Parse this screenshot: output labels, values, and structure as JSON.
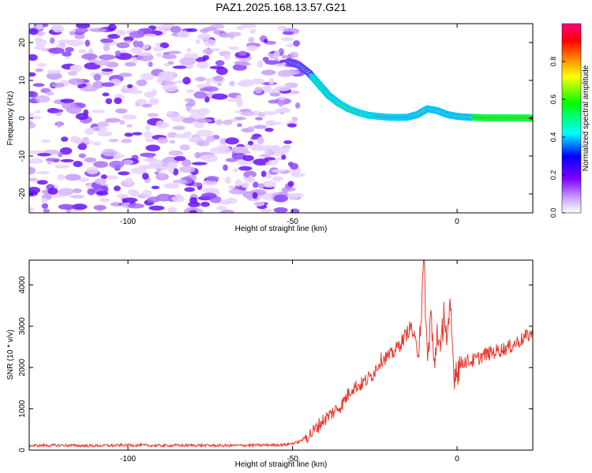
{
  "title": "PAZ1.2025.168.13.57.G21",
  "chart_data": [
    {
      "type": "heatmap",
      "xlabel": "Height of straight line (km)",
      "ylabel": "Frequency (Hz)",
      "xlim": [
        -130,
        23
      ],
      "ylim": [
        -25,
        25
      ],
      "xticks": [
        -100,
        -50,
        0
      ],
      "yticks": [
        -20,
        -10,
        0,
        10,
        20
      ],
      "colorbar": {
        "label": "Normalized spectral amplitude",
        "range": [
          0,
          1
        ],
        "ticks": [
          0.0,
          0.2,
          0.4,
          0.6,
          0.8
        ],
        "colors": [
          "#ffffff",
          "#9f3fff",
          "#0000ff",
          "#00ffff",
          "#00ff00",
          "#ffff00",
          "#ff8000",
          "#ff0000",
          "#ff0080"
        ]
      },
      "ridge": {
        "x": [
          -51,
          -48,
          -45,
          -42,
          -39,
          -36,
          -33,
          -30,
          -27,
          -24,
          -21,
          -18,
          -15,
          -12,
          -9,
          -6,
          -3,
          0,
          3,
          6,
          9,
          12,
          15,
          18,
          21,
          23
        ],
        "y": [
          15,
          14,
          12,
          9,
          6,
          4,
          2.5,
          1.5,
          0.8,
          0.5,
          0.3,
          0.2,
          0.3,
          1.0,
          2.5,
          2.0,
          1.0,
          0.5,
          0.3,
          0.2,
          0.1,
          0.1,
          0.1,
          0.1,
          0.1,
          0
        ]
      }
    },
    {
      "type": "line",
      "xlabel": "Height of straight line (km)",
      "ylabel": "SNR (10 * v/v)",
      "xlim": [
        -130,
        23
      ],
      "ylim": [
        0,
        4600
      ],
      "xticks": [
        -100,
        -50,
        0
      ],
      "yticks": [
        0,
        1000,
        2000,
        3000,
        4000
      ],
      "line_color": "#e8382f",
      "series": [
        {
          "x": [
            -130,
            -120,
            -110,
            -100,
            -90,
            -80,
            -70,
            -60,
            -52,
            -48,
            -44,
            -41,
            -38,
            -35,
            -32,
            -29,
            -26,
            -23,
            -20,
            -17,
            -14,
            -12,
            -11,
            -10,
            -9,
            -8,
            -7,
            -6,
            -5,
            -4,
            -3,
            -2,
            -1,
            0,
            2,
            4,
            6,
            8,
            10,
            12,
            14,
            16,
            18,
            20,
            22,
            23
          ],
          "y": [
            110,
            115,
            105,
            120,
            110,
            115,
            110,
            120,
            130,
            200,
            420,
            700,
            900,
            1100,
            1500,
            1600,
            1800,
            2200,
            2300,
            2600,
            3000,
            2400,
            3200,
            4500,
            2000,
            3400,
            1900,
            3000,
            2200,
            3500,
            2500,
            3400,
            1900,
            2000,
            2150,
            2150,
            2200,
            2300,
            2350,
            2400,
            2450,
            2500,
            2600,
            2700,
            2800,
            2850
          ]
        }
      ]
    }
  ]
}
